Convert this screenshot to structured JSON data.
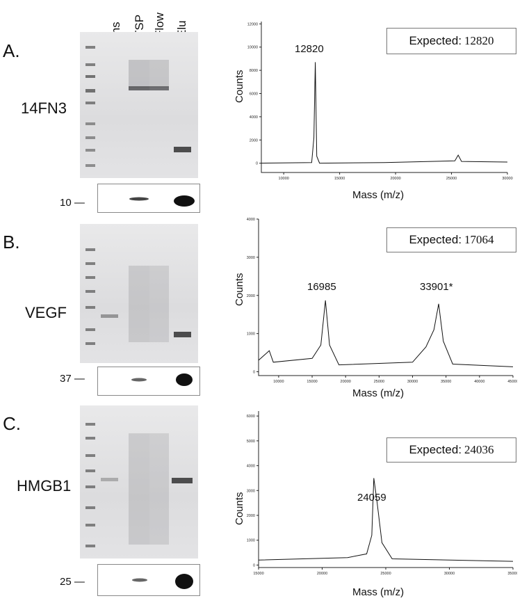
{
  "lanes": [
    "Ins",
    "TSP",
    "Flow",
    "Elu"
  ],
  "panels": [
    {
      "letter": "A.",
      "protein": "14FN3",
      "marker": "10 —",
      "expected_label": "Expected:",
      "expected_value": "12820",
      "peaks": [
        "12820"
      ]
    },
    {
      "letter": "B.",
      "protein": "VEGF",
      "marker": "37 —",
      "expected_label": "Expected:",
      "expected_value": "17064",
      "peaks": [
        "16985",
        "33901*"
      ]
    },
    {
      "letter": "C.",
      "protein": "HMGB1",
      "marker": "25 —",
      "expected_label": "Expected:",
      "expected_value": "24036",
      "peaks": [
        "24059"
      ]
    }
  ],
  "chart_data": [
    {
      "type": "line",
      "xlabel": "Mass (m/z)",
      "ylabel": "Counts",
      "xlim": [
        8000,
        30000
      ],
      "ylim": [
        -800,
        12200
      ],
      "x_ticks": [
        "10000",
        "15000",
        "20000",
        "25000",
        "30000"
      ],
      "y_ticks": [
        "0",
        "2000",
        "4000",
        "6000",
        "8000",
        "10000",
        "12000"
      ],
      "x": [
        8000,
        12500,
        12700,
        12820,
        12950,
        13200,
        19000,
        25300,
        25600,
        25900,
        30000
      ],
      "y": [
        0,
        50,
        2200,
        8700,
        600,
        0,
        50,
        200,
        700,
        150,
        100
      ]
    },
    {
      "type": "line",
      "xlabel": "Mass (m/z)",
      "ylabel": "Counts",
      "xlim": [
        7000,
        45000
      ],
      "ylim": [
        -100,
        4000
      ],
      "x_ticks": [
        "10000",
        "15000",
        "20000",
        "25000",
        "30000",
        "35000",
        "40000",
        "45000"
      ],
      "y_ticks": [
        "0",
        "1000",
        "2000",
        "3000",
        "4000"
      ],
      "x": [
        7000,
        8600,
        9200,
        15000,
        16300,
        16985,
        17600,
        19000,
        30000,
        32000,
        33200,
        33901,
        34600,
        36000,
        45000
      ],
      "y": [
        300,
        550,
        250,
        350,
        700,
        1870,
        700,
        180,
        250,
        650,
        1100,
        1780,
        800,
        200,
        130
      ]
    },
    {
      "type": "line",
      "xlabel": "Mass (m/z)",
      "ylabel": "Counts",
      "xlim": [
        15000,
        35000
      ],
      "ylim": [
        -100,
        6200
      ],
      "x_ticks": [
        "15000",
        "20000",
        "25000",
        "30000",
        "35000"
      ],
      "y_ticks": [
        "0",
        "1000",
        "2000",
        "3000",
        "4000",
        "5000",
        "6000"
      ],
      "x": [
        15000,
        22000,
        23500,
        23900,
        24059,
        24300,
        24700,
        25500,
        35000
      ],
      "y": [
        200,
        300,
        450,
        1200,
        3500,
        2600,
        900,
        250,
        150
      ]
    }
  ]
}
